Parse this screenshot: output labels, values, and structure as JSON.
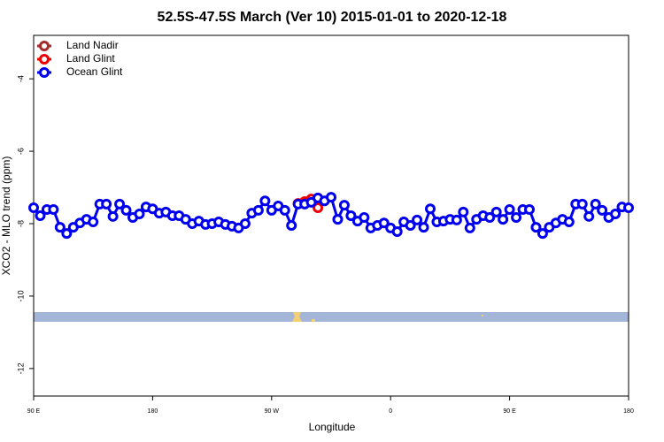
{
  "chart_data": {
    "type": "line",
    "title": "52.5S-47.5S March (Ver 10)   2015-01-01 to 2020-12-18",
    "x_label": "Longitude",
    "y_label": "XCO2 - MLO trend (ppm)",
    "x": [
      90,
      95,
      100,
      105,
      110,
      115,
      120,
      125,
      130,
      135,
      140,
      145,
      150,
      155,
      160,
      165,
      170,
      175,
      180,
      185,
      190,
      195,
      200,
      205,
      210,
      215,
      220,
      225,
      230,
      235,
      240,
      245,
      250,
      255,
      260,
      265,
      270,
      275,
      280,
      285,
      290,
      295,
      300,
      305,
      310,
      315,
      320,
      325,
      330,
      335,
      340,
      345,
      350,
      355,
      360,
      365,
      370,
      375,
      380,
      385,
      390,
      395,
      400,
      405,
      410,
      415,
      420,
      425,
      430,
      435,
      440,
      445,
      450,
      455,
      460,
      465,
      470,
      475,
      480,
      485,
      490,
      495,
      500,
      505,
      510,
      515,
      520,
      525,
      530,
      535,
      540
    ],
    "series": [
      {
        "name": "Land Nadir",
        "color": "#a52a2a",
        "values": [
          null,
          null,
          null,
          null,
          null,
          null,
          null,
          null,
          null,
          null,
          null,
          null,
          null,
          null,
          null,
          null,
          null,
          null,
          null,
          null,
          null,
          null,
          null,
          null,
          null,
          null,
          null,
          null,
          null,
          null,
          null,
          null,
          null,
          null,
          null,
          null,
          null,
          null,
          null,
          null,
          null,
          null,
          null,
          null,
          null,
          null,
          null,
          null,
          null,
          null,
          null,
          null,
          null,
          null,
          null,
          null,
          null,
          null,
          null,
          null,
          null,
          null,
          null,
          null,
          null,
          null,
          null,
          null,
          null,
          null,
          null,
          null,
          null,
          null,
          null,
          null,
          null,
          null,
          null,
          null,
          null,
          null,
          null,
          null,
          null,
          null,
          null,
          null,
          null,
          null,
          null
        ]
      },
      {
        "name": "Land Glint",
        "color": "#ee0000",
        "values": [
          null,
          null,
          null,
          null,
          null,
          null,
          null,
          null,
          null,
          null,
          null,
          null,
          null,
          null,
          null,
          null,
          null,
          null,
          null,
          null,
          null,
          null,
          null,
          null,
          null,
          null,
          null,
          null,
          null,
          null,
          null,
          null,
          null,
          null,
          null,
          null,
          null,
          null,
          null,
          null,
          -7.44,
          -7.39,
          -7.32,
          -7.56,
          null,
          null,
          null,
          null,
          null,
          null,
          null,
          null,
          null,
          null,
          null,
          null,
          null,
          null,
          null,
          null,
          null,
          null,
          null,
          null,
          null,
          null,
          null,
          null,
          null,
          null,
          null,
          null,
          null,
          null,
          null,
          null,
          null,
          null,
          null,
          null,
          null,
          null,
          null,
          null,
          null,
          null,
          null,
          null,
          null,
          null,
          null
        ]
      },
      {
        "name": "Ocean Glint",
        "color": "#0000ee",
        "values": [
          -7.56,
          -7.78,
          -7.61,
          -7.61,
          -8.1,
          -8.27,
          -8.1,
          -7.98,
          -7.88,
          -7.95,
          -7.46,
          -7.46,
          -7.8,
          -7.46,
          -7.63,
          -7.83,
          -7.73,
          -7.54,
          -7.59,
          -7.71,
          -7.68,
          -7.78,
          -7.78,
          -7.88,
          -8.0,
          -7.93,
          -8.02,
          -8.0,
          -7.95,
          -8.02,
          -8.07,
          -8.12,
          -8.0,
          -7.71,
          -7.63,
          -7.37,
          -7.63,
          -7.51,
          -7.63,
          -8.05,
          -7.46,
          -7.46,
          -7.41,
          -7.29,
          -7.37,
          -7.27,
          -7.88,
          -7.49,
          -7.78,
          -7.93,
          -7.83,
          -8.12,
          -8.05,
          -7.98,
          -8.12,
          -8.22,
          -7.95,
          -8.05,
          -7.9,
          -8.1,
          -7.59,
          -7.95,
          -7.93,
          -7.88,
          -7.9,
          -7.68,
          -8.12,
          -7.88,
          -7.78,
          -7.83,
          -7.68,
          -7.88,
          -7.61,
          -7.83,
          -7.61,
          -7.61,
          -8.1,
          -8.27,
          -8.1,
          -7.98,
          -7.88,
          -7.95,
          -7.46,
          -7.46,
          -7.8,
          -7.46,
          -7.63,
          -7.83,
          -7.73,
          -7.54,
          -7.56
        ]
      }
    ],
    "xlim": [
      90,
      540
    ],
    "xticks": [
      {
        "value": 90,
        "label": "90 E"
      },
      180,
      {
        "value": 270,
        "label": "90 W"
      },
      {
        "value": 360,
        "label": "0"
      },
      {
        "value": 450,
        "label": "90 E"
      },
      {
        "value": 540,
        "label": "180"
      }
    ],
    "ylim": [
      -12.76,
      -2.8
    ],
    "yticks": [
      -4,
      -6,
      -8,
      -10,
      -12
    ],
    "legend": "top-left"
  }
}
